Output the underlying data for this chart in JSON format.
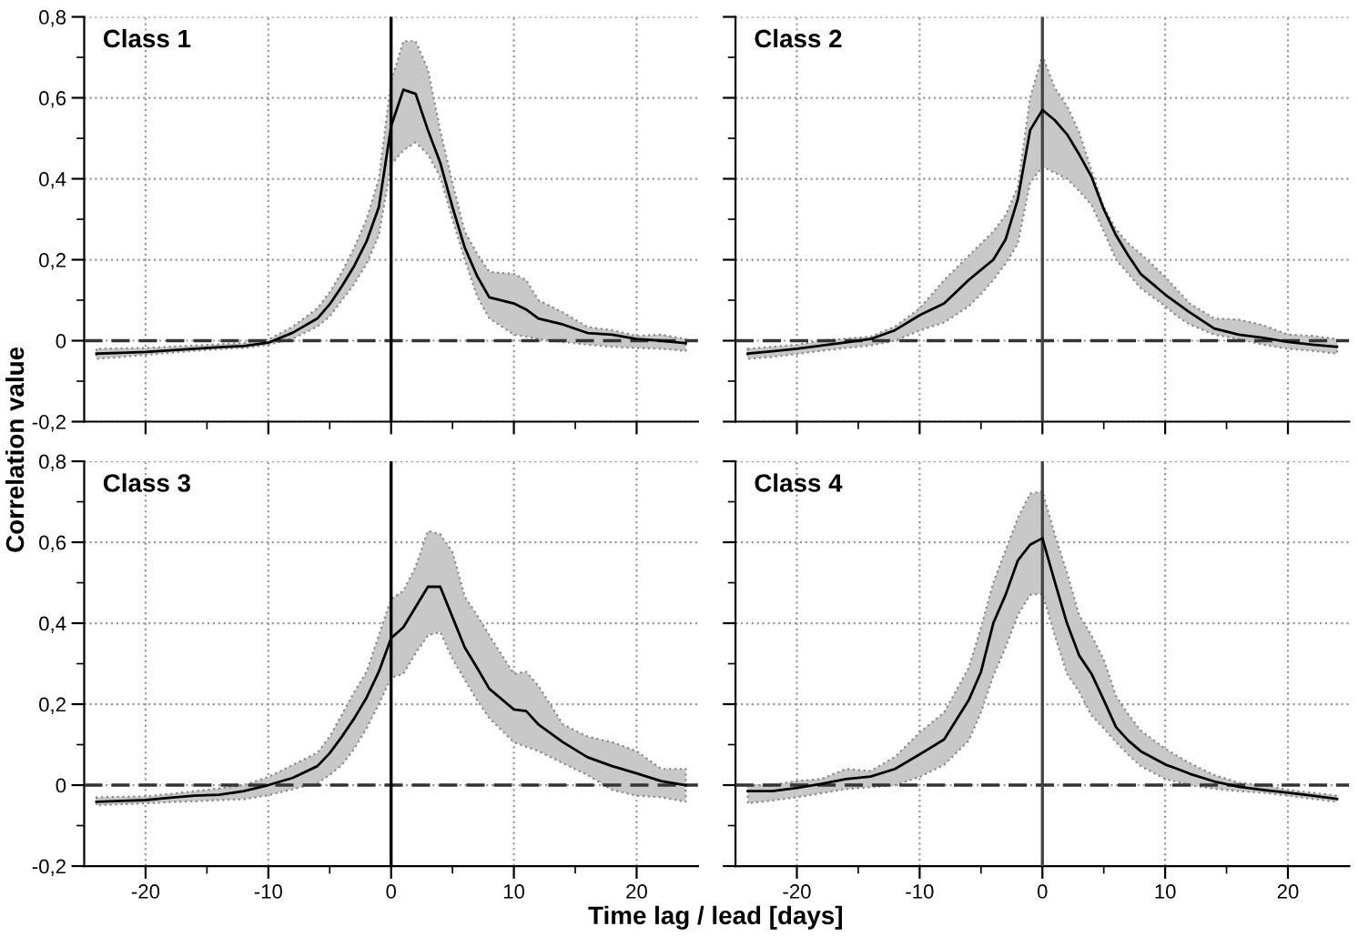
{
  "chart_data": [
    {
      "type": "line",
      "title": "Class 1",
      "ylabel": "Correlation value",
      "tick_labels": "y",
      "grid": true,
      "xlim": [
        -25,
        25
      ],
      "ylim": [
        -0.2,
        0.8
      ],
      "xticks": [
        {
          "value": -20,
          "label": null
        },
        {
          "value": -15,
          "label": null
        },
        {
          "value": -10,
          "label": null
        },
        {
          "value": -5,
          "label": null
        },
        {
          "value": 0,
          "label": null
        },
        {
          "value": 5,
          "label": null
        },
        {
          "value": 10,
          "label": null
        },
        {
          "value": 15,
          "label": null
        },
        {
          "value": 20,
          "label": null
        }
      ],
      "yticks": [
        {
          "value": -0.2,
          "label": "-0,2"
        },
        {
          "value": -0.1,
          "label": null
        },
        0,
        {
          "value": 0.1,
          "label": null
        },
        {
          "value": 0.2,
          "label": "0,2"
        },
        {
          "value": 0.3,
          "label": null
        },
        {
          "value": 0.4,
          "label": "0,4"
        },
        {
          "value": 0.5,
          "label": null
        },
        {
          "value": 0.6,
          "label": "0,6"
        },
        {
          "value": 0.7,
          "label": null
        },
        {
          "value": 0.8,
          "label": "0,8"
        }
      ],
      "ref_lines": [
        {
          "axis": "y",
          "value": 0,
          "line_style": "dashed",
          "color": "#333333"
        },
        {
          "axis": "x",
          "value": 0,
          "line_style": "solid",
          "color": "#000000"
        }
      ],
      "x": [
        -24,
        -22,
        -20,
        -18,
        -16,
        -14,
        -12,
        -10,
        -8,
        -6,
        -5,
        -4,
        -3,
        -2,
        -1,
        0,
        1,
        2,
        3,
        4,
        5,
        6,
        7,
        8,
        10,
        11,
        12,
        14,
        16,
        18,
        20,
        22,
        24
      ],
      "series": [
        {
          "color": "#000000",
          "values": [
            -0.032,
            -0.03,
            -0.028,
            -0.024,
            -0.02,
            -0.016,
            -0.013,
            -0.005,
            0.02,
            0.055,
            0.09,
            0.135,
            0.185,
            0.245,
            0.33,
            0.53,
            0.62,
            0.61,
            0.52,
            0.44,
            0.33,
            0.23,
            0.16,
            0.107,
            0.092,
            0.077,
            0.055,
            0.04,
            0.019,
            0.015,
            0.004,
            0,
            -0.006
          ],
          "lower": [
            -0.045,
            -0.04,
            -0.035,
            -0.03,
            -0.025,
            -0.021,
            -0.018,
            -0.01,
            0.005,
            0.035,
            0.06,
            0.1,
            0.14,
            0.19,
            0.26,
            0.435,
            0.47,
            0.49,
            0.46,
            0.405,
            0.3,
            0.2,
            0.11,
            0.055,
            0.015,
            0.01,
            0.004,
            -0.003,
            -0.01,
            -0.015,
            -0.018,
            -0.02,
            -0.025
          ],
          "upper": [
            -0.02,
            -0.019,
            -0.018,
            -0.015,
            -0.012,
            -0.009,
            -0.006,
            0.003,
            0.035,
            0.08,
            0.12,
            0.17,
            0.23,
            0.3,
            0.4,
            0.64,
            0.74,
            0.74,
            0.67,
            0.52,
            0.39,
            0.27,
            0.215,
            0.17,
            0.165,
            0.15,
            0.1,
            0.07,
            0.034,
            0.026,
            0.012,
            0.015,
            0.004
          ]
        }
      ]
    },
    {
      "type": "line",
      "title": "Class 2",
      "tick_labels": false,
      "grid": true,
      "xlim": [
        -25,
        25
      ],
      "ylim": [
        -0.2,
        0.8
      ],
      "xticks": [
        {
          "value": -20,
          "label": null
        },
        {
          "value": -15,
          "label": null
        },
        {
          "value": -10,
          "label": null
        },
        {
          "value": -5,
          "label": null
        },
        {
          "value": 0,
          "label": null
        },
        {
          "value": 5,
          "label": null
        },
        {
          "value": 10,
          "label": null
        },
        {
          "value": 15,
          "label": null
        },
        {
          "value": 20,
          "label": null
        }
      ],
      "yticks": [
        {
          "value": -0.2,
          "label": null
        },
        {
          "value": -0.1,
          "label": null
        },
        {
          "value": 0,
          "label": null
        },
        {
          "value": 0.1,
          "label": null
        },
        {
          "value": 0.2,
          "label": null
        },
        {
          "value": 0.3,
          "label": null
        },
        {
          "value": 0.4,
          "label": null
        },
        {
          "value": 0.5,
          "label": null
        },
        {
          "value": 0.6,
          "label": null
        },
        {
          "value": 0.7,
          "label": null
        },
        {
          "value": 0.8,
          "label": null
        }
      ],
      "ref_lines": [
        {
          "axis": "y",
          "value": 0,
          "line_style": "dashed",
          "color": "#333333"
        },
        {
          "axis": "x",
          "value": 0,
          "line_style": "solid",
          "color": "#444444"
        }
      ],
      "x": [
        -24,
        -22,
        -20,
        -18,
        -16,
        -14,
        -12,
        -10,
        -8,
        -6,
        -5,
        -4,
        -3,
        -2,
        -1,
        0,
        1,
        2,
        3,
        4,
        5,
        6,
        7,
        8,
        10,
        11,
        12,
        14,
        16,
        18,
        20,
        22,
        24
      ],
      "series": [
        {
          "color": "#000000",
          "values": [
            -0.032,
            -0.026,
            -0.02,
            -0.012,
            -0.004,
            0.004,
            0.026,
            0.063,
            0.092,
            0.15,
            0.175,
            0.2,
            0.25,
            0.35,
            0.52,
            0.57,
            0.545,
            0.51,
            0.46,
            0.405,
            0.325,
            0.26,
            0.21,
            0.165,
            0.114,
            0.092,
            0.07,
            0.03,
            0.015,
            0.007,
            -0.003,
            -0.01,
            -0.015
          ],
          "lower": [
            -0.045,
            -0.04,
            -0.033,
            -0.025,
            -0.018,
            -0.012,
            0.0,
            0.025,
            0.045,
            0.085,
            0.115,
            0.15,
            0.19,
            0.24,
            0.39,
            0.43,
            0.415,
            0.4,
            0.37,
            0.335,
            0.27,
            0.2,
            0.165,
            0.13,
            0.085,
            0.06,
            0.04,
            0.015,
            0.004,
            -0.01,
            -0.02,
            -0.025,
            -0.032
          ],
          "upper": [
            -0.02,
            -0.015,
            -0.01,
            0.0,
            0.005,
            0.01,
            0.035,
            0.08,
            0.15,
            0.21,
            0.24,
            0.27,
            0.31,
            0.38,
            0.6,
            0.705,
            0.625,
            0.58,
            0.515,
            0.42,
            0.33,
            0.275,
            0.24,
            0.215,
            0.158,
            0.125,
            0.092,
            0.055,
            0.052,
            0.038,
            0.015,
            0.012,
            0.004
          ]
        }
      ]
    },
    {
      "type": "line",
      "title": "Class 3",
      "xlabel": "Time lag / lead [days]",
      "grid": true,
      "xlim": [
        -25,
        25
      ],
      "ylim": [
        -0.2,
        0.8
      ],
      "xticks": [
        -20,
        {
          "value": -15,
          "label": null
        },
        -10,
        {
          "value": -5,
          "label": null
        },
        0,
        {
          "value": 5,
          "label": null
        },
        10,
        {
          "value": 15,
          "label": null
        },
        20
      ],
      "yticks": [
        {
          "value": -0.2,
          "label": "-0,2"
        },
        {
          "value": -0.1,
          "label": null
        },
        0,
        {
          "value": 0.1,
          "label": null
        },
        {
          "value": 0.2,
          "label": "0,2"
        },
        {
          "value": 0.3,
          "label": null
        },
        {
          "value": 0.4,
          "label": "0,4"
        },
        {
          "value": 0.5,
          "label": null
        },
        {
          "value": 0.6,
          "label": "0,6"
        },
        {
          "value": 0.7,
          "label": null
        },
        {
          "value": 0.8,
          "label": "0,8"
        }
      ],
      "ref_lines": [
        {
          "axis": "y",
          "value": 0,
          "line_style": "dashed",
          "color": "#333333"
        },
        {
          "axis": "x",
          "value": 0,
          "line_style": "solid",
          "color": "#000000"
        }
      ],
      "x": [
        -24,
        -22,
        -20,
        -18,
        -16,
        -14,
        -12,
        -10,
        -8,
        -6,
        -5,
        -4,
        -3,
        -2,
        -1,
        0,
        1,
        2,
        3,
        4,
        5,
        6,
        7,
        8,
        10,
        11,
        12,
        14,
        16,
        18,
        20,
        22,
        24
      ],
      "series": [
        {
          "color": "#000000",
          "values": [
            -0.041,
            -0.039,
            -0.037,
            -0.031,
            -0.026,
            -0.024,
            -0.015,
            0.0,
            0.018,
            0.047,
            0.079,
            0.12,
            0.165,
            0.216,
            0.28,
            0.363,
            0.39,
            0.44,
            0.49,
            0.49,
            0.415,
            0.34,
            0.29,
            0.238,
            0.187,
            0.183,
            0.15,
            0.106,
            0.069,
            0.047,
            0.029,
            0.01,
            0.0
          ],
          "lower": [
            -0.05,
            -0.047,
            -0.045,
            -0.042,
            -0.04,
            -0.037,
            -0.035,
            -0.025,
            -0.01,
            0.005,
            0.025,
            0.05,
            0.09,
            0.14,
            0.2,
            0.265,
            0.275,
            0.326,
            0.37,
            0.378,
            0.312,
            0.26,
            0.21,
            0.165,
            0.106,
            0.095,
            0.084,
            0.054,
            0.025,
            -0.012,
            -0.026,
            -0.03,
            -0.041
          ],
          "upper": [
            -0.03,
            -0.029,
            -0.028,
            -0.022,
            -0.015,
            -0.008,
            0.0,
            0.02,
            0.05,
            0.08,
            0.12,
            0.175,
            0.23,
            0.28,
            0.37,
            0.46,
            0.48,
            0.54,
            0.628,
            0.62,
            0.576,
            0.466,
            0.42,
            0.37,
            0.275,
            0.28,
            0.245,
            0.15,
            0.12,
            0.106,
            0.084,
            0.04,
            0.04
          ]
        }
      ]
    },
    {
      "type": "line",
      "title": "Class 4",
      "tick_labels": "x",
      "grid": true,
      "xlim": [
        -25,
        25
      ],
      "ylim": [
        -0.2,
        0.8
      ],
      "xticks": [
        -20,
        {
          "value": -15,
          "label": null
        },
        -10,
        {
          "value": -5,
          "label": null
        },
        0,
        {
          "value": 5,
          "label": null
        },
        10,
        {
          "value": 15,
          "label": null
        },
        20
      ],
      "yticks": [
        {
          "value": -0.2,
          "label": null
        },
        {
          "value": -0.1,
          "label": null
        },
        {
          "value": 0,
          "label": null
        },
        {
          "value": 0.1,
          "label": null
        },
        {
          "value": 0.2,
          "label": null
        },
        {
          "value": 0.3,
          "label": null
        },
        {
          "value": 0.4,
          "label": null
        },
        {
          "value": 0.5,
          "label": null
        },
        {
          "value": 0.6,
          "label": null
        },
        {
          "value": 0.7,
          "label": null
        },
        {
          "value": 0.8,
          "label": null
        }
      ],
      "ref_lines": [
        {
          "axis": "y",
          "value": 0,
          "line_style": "dashed",
          "color": "#333333"
        },
        {
          "axis": "x",
          "value": 0,
          "line_style": "solid",
          "color": "#444444"
        }
      ],
      "x": [
        -24,
        -22,
        -20,
        -18,
        -16,
        -14,
        -12,
        -10,
        -8,
        -6,
        -5,
        -4,
        -3,
        -2,
        -1,
        0,
        1,
        2,
        3,
        4,
        5,
        6,
        7,
        8,
        10,
        11,
        12,
        14,
        16,
        18,
        20,
        22,
        24
      ],
      "series": [
        {
          "color": "#000000",
          "values": [
            -0.015,
            -0.015,
            -0.007,
            0.003,
            0.015,
            0.021,
            0.04,
            0.076,
            0.113,
            0.21,
            0.28,
            0.4,
            0.47,
            0.555,
            0.594,
            0.61,
            0.503,
            0.4,
            0.32,
            0.275,
            0.21,
            0.143,
            0.11,
            0.084,
            0.051,
            0.04,
            0.028,
            0.009,
            -0.004,
            -0.012,
            -0.019,
            -0.026,
            -0.034
          ],
          "lower": [
            -0.045,
            -0.038,
            -0.03,
            -0.02,
            -0.01,
            -0.005,
            0.0,
            0.02,
            0.05,
            0.11,
            0.18,
            0.27,
            0.34,
            0.42,
            0.47,
            0.473,
            0.37,
            0.275,
            0.23,
            0.172,
            0.14,
            0.106,
            0.075,
            0.047,
            0.015,
            0.008,
            0.0,
            -0.009,
            -0.015,
            -0.019,
            -0.026,
            -0.034,
            -0.041
          ],
          "upper": [
            0.0,
            0.0,
            0.01,
            0.015,
            0.04,
            0.035,
            0.07,
            0.13,
            0.18,
            0.29,
            0.39,
            0.5,
            0.58,
            0.66,
            0.72,
            0.726,
            0.62,
            0.525,
            0.42,
            0.37,
            0.31,
            0.22,
            0.175,
            0.135,
            0.09,
            0.072,
            0.054,
            0.025,
            0.006,
            0.0,
            -0.012,
            -0.019,
            -0.026
          ]
        }
      ]
    }
  ]
}
